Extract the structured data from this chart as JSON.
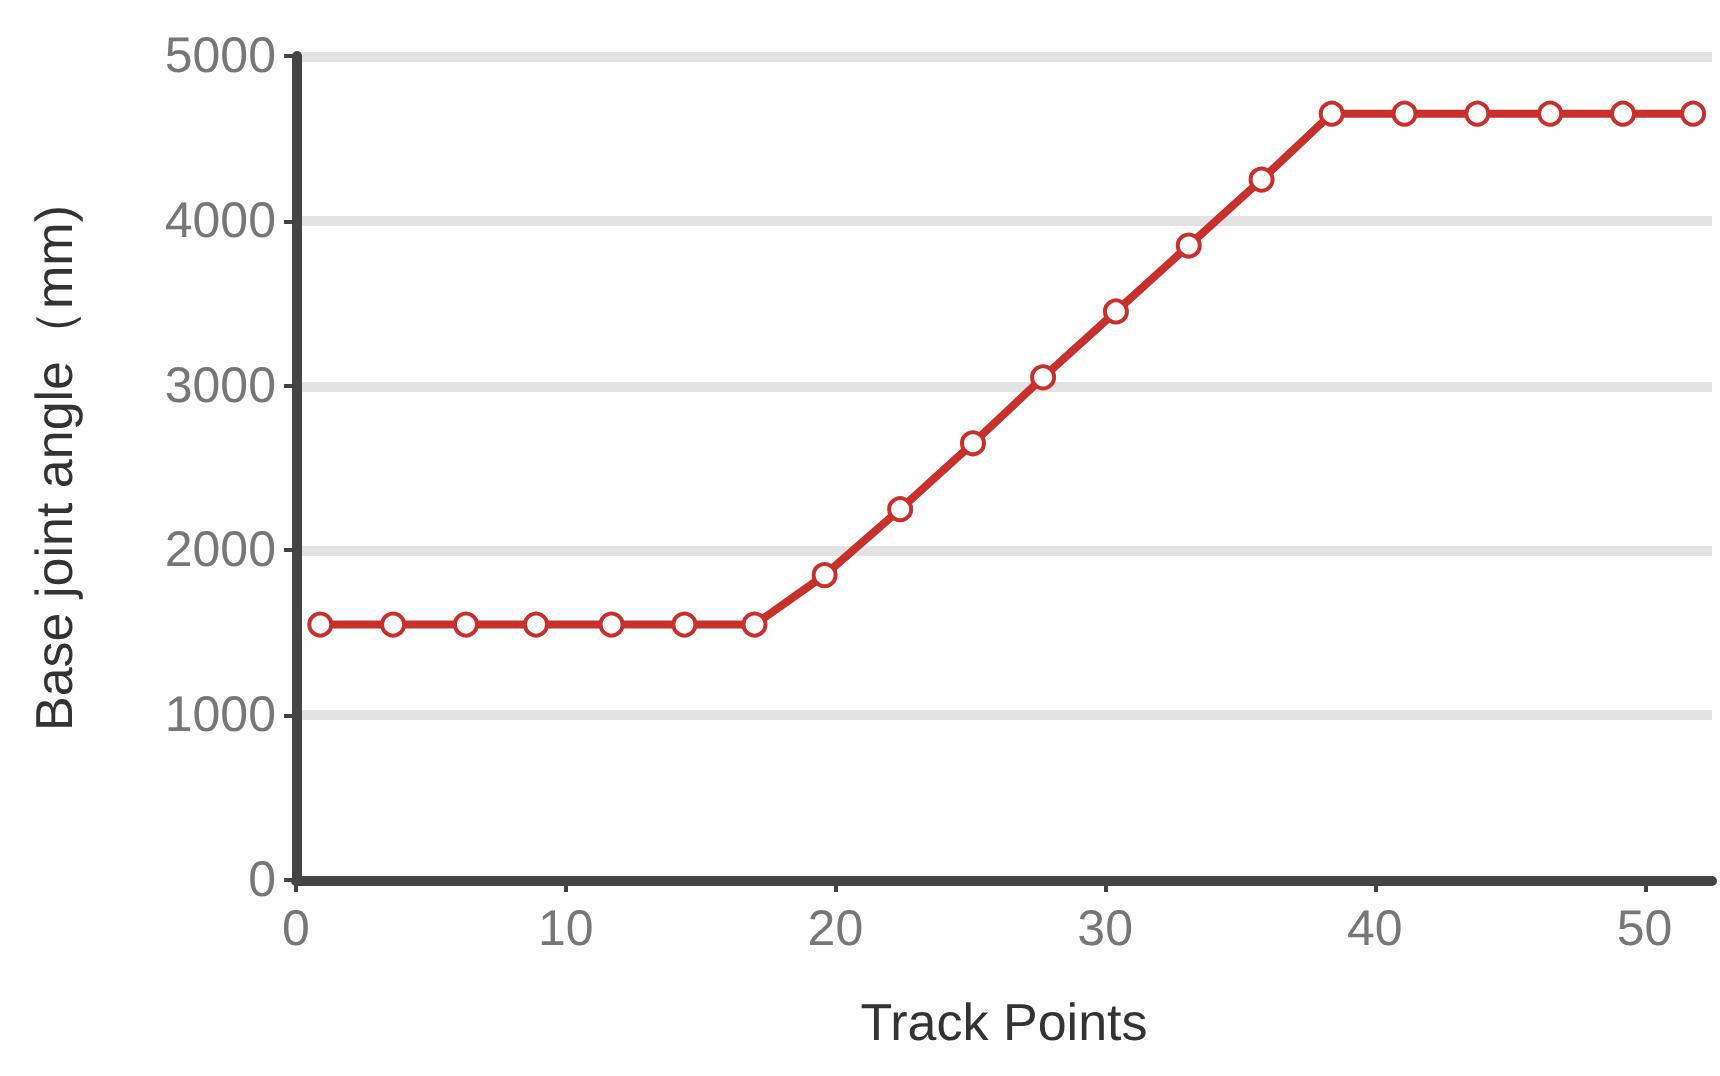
{
  "chart_data": {
    "type": "line",
    "xlabel": "Track Points",
    "ylabel": "Base joint angle（mm)",
    "x": [
      0.9,
      3.6,
      6.3,
      8.9,
      11.7,
      14.4,
      17.0,
      19.6,
      22.4,
      25.1,
      27.7,
      30.4,
      33.1,
      35.8,
      38.4,
      41.1,
      43.8,
      46.5,
      49.2,
      51.8
    ],
    "series": [
      {
        "color": "#c8302c",
        "values": [
          1550,
          1550,
          1550,
          1550,
          1550,
          1550,
          1550,
          1850,
          2250,
          2650,
          3050,
          3450,
          3850,
          4250,
          4650,
          4650,
          4650,
          4650,
          4650,
          4650
        ]
      }
    ],
    "xlim": [
      0,
      52.5
    ],
    "xticks": [
      0,
      10,
      20,
      30,
      40,
      50
    ],
    "ylim": [
      0,
      5000
    ],
    "yticks": [
      0,
      1000,
      2000,
      3000,
      4000,
      5000
    ],
    "grid": "y",
    "marker": "circle",
    "line_style": "solid"
  }
}
